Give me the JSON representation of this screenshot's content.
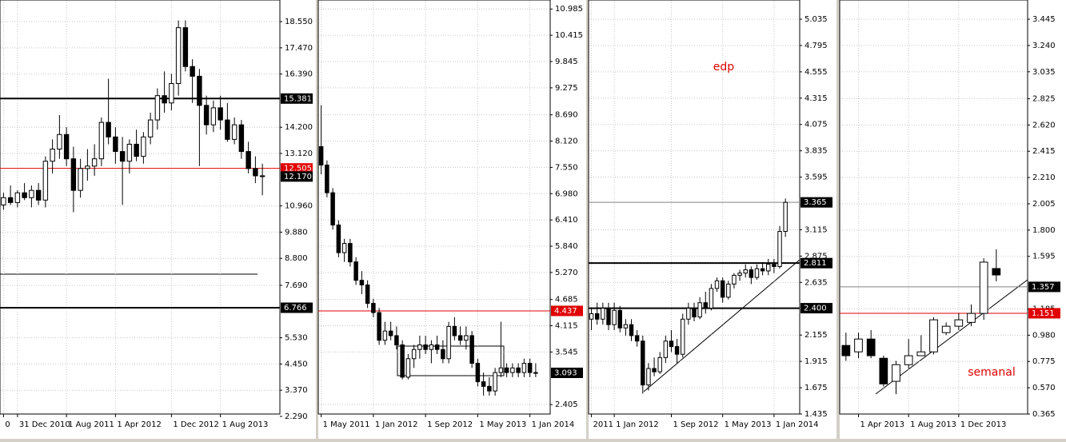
{
  "chart_data": [
    {
      "type": "candlestick",
      "ylim": [
        2.389,
        19.44
      ],
      "yticks": [
        {
          "value": 18.55,
          "label": "18.550"
        },
        {
          "value": 17.47,
          "label": "17.470"
        },
        {
          "value": 16.39,
          "label": "16.390"
        },
        {
          "value": 14.2,
          "label": "14.200"
        },
        {
          "value": 13.12,
          "label": "13.120"
        },
        {
          "value": 10.96,
          "label": "10.960"
        },
        {
          "value": 9.88,
          "label": "9.880"
        },
        {
          "value": 8.8,
          "label": "8.800"
        },
        {
          "value": 7.69,
          "label": "7.690"
        },
        {
          "value": 5.53,
          "label": "5.530"
        },
        {
          "value": 4.45,
          "label": "4.450"
        },
        {
          "value": 3.37,
          "label": "3.370"
        },
        {
          "value": 2.29,
          "label": "2.290"
        }
      ],
      "xticks": [
        {
          "value": 0,
          "label": "0"
        },
        {
          "value": 2,
          "label": "31 Dec 2010"
        },
        {
          "value": 9,
          "label": "1 Aug 2011"
        },
        {
          "value": 16,
          "label": "1 Apr 2012"
        },
        {
          "value": 24,
          "label": "1 Dec 2012"
        },
        {
          "value": 31,
          "label": "1 Aug 2013"
        }
      ],
      "series": [
        {
          "open": [
            11.0,
            11.3,
            11.1,
            11.5,
            11.3,
            11.6,
            11.2,
            12.8,
            13.3,
            13.9,
            12.9,
            11.6,
            12.5,
            12.6,
            12.9,
            14.4,
            13.8,
            13.2,
            12.8,
            13.5,
            13.0,
            13.8,
            14.5,
            15.5,
            15.2,
            16.0,
            18.3,
            16.7,
            16.3,
            15.1,
            14.3,
            15.0,
            14.5,
            13.7,
            14.3,
            13.2,
            12.5,
            12.2
          ],
          "high": [
            11.5,
            11.8,
            11.6,
            11.9,
            11.8,
            11.9,
            13.0,
            13.7,
            14.7,
            14.2,
            13.4,
            12.9,
            13.3,
            13.5,
            14.6,
            16.2,
            14.2,
            13.8,
            13.7,
            14.1,
            14.0,
            14.8,
            15.8,
            16.5,
            16.4,
            18.6,
            18.6,
            17.0,
            16.6,
            15.5,
            15.3,
            15.5,
            15.2,
            14.6,
            14.5,
            13.6,
            13.0,
            12.7
          ],
          "low": [
            10.8,
            11.0,
            10.9,
            11.2,
            10.9,
            11.0,
            10.9,
            12.3,
            12.9,
            12.6,
            10.7,
            11.3,
            12.0,
            12.2,
            12.6,
            13.5,
            12.7,
            11.0,
            12.3,
            12.8,
            12.7,
            13.5,
            14.1,
            14.8,
            14.9,
            15.5,
            16.5,
            15.2,
            12.6,
            13.9,
            14.0,
            14.1,
            13.6,
            13.5,
            12.9,
            12.3,
            11.9,
            11.4
          ],
          "close": [
            11.3,
            11.1,
            11.5,
            11.3,
            11.6,
            11.2,
            12.8,
            13.3,
            13.9,
            12.9,
            11.6,
            12.5,
            12.6,
            12.9,
            14.4,
            13.8,
            13.2,
            12.8,
            13.5,
            13.0,
            13.8,
            14.5,
            15.5,
            15.2,
            16.0,
            18.3,
            16.7,
            16.3,
            15.1,
            14.3,
            15.0,
            14.5,
            13.7,
            14.3,
            13.2,
            12.5,
            12.2,
            12.17
          ]
        }
      ],
      "hlines": [
        {
          "value": 15.381,
          "label": "15.381",
          "color": "#000000",
          "style": "thick"
        },
        {
          "value": 12.505,
          "label": "12.505",
          "color": "#e00000",
          "style": "thin"
        },
        {
          "value": 12.17,
          "label": "12.170",
          "color": "#000000",
          "style": "none"
        },
        {
          "value": 6.766,
          "label": "6.766",
          "color": "#000000",
          "style": "thick"
        }
      ],
      "annotations": []
    },
    {
      "type": "candlestick",
      "ylim": [
        2.2,
        11.18
      ],
      "yticks": [
        10.985,
        10.415,
        9.845,
        9.275,
        {
          "value": 8.69,
          "label": "8.690"
        },
        {
          "value": 8.12,
          "label": "8.120"
        },
        {
          "value": 7.55,
          "label": "7.550"
        },
        {
          "value": 6.98,
          "label": "6.980"
        },
        {
          "value": 6.41,
          "label": "6.410"
        },
        {
          "value": 5.84,
          "label": "5.840"
        },
        {
          "value": 5.27,
          "label": "5.270"
        },
        4.685,
        4.115,
        3.545,
        2.405
      ],
      "xticks": [
        {
          "value": 0,
          "label": "1 May 2011"
        },
        {
          "value": 9,
          "label": "1 Jan 2012"
        },
        {
          "value": 18,
          "label": "1 Sep 2012"
        },
        {
          "value": 27,
          "label": "1 May 2013"
        },
        {
          "value": 36,
          "label": "1 Jan 2014"
        }
      ],
      "series": [
        {
          "open": [
            8.0,
            7.6,
            7.0,
            6.3,
            5.7,
            5.9,
            5.5,
            5.1,
            5.0,
            4.6,
            4.4,
            3.8,
            4.0,
            3.9,
            3.7,
            3.0,
            3.4,
            3.6,
            3.7,
            3.6,
            3.7,
            3.6,
            3.4,
            4.1,
            3.9,
            3.8,
            3.9,
            3.3,
            2.9,
            2.8,
            2.7,
            3.1,
            3.2,
            3.1,
            3.2,
            3.1,
            3.3,
            3.1
          ],
          "high": [
            8.9,
            7.7,
            7.1,
            6.4,
            6.0,
            6.0,
            5.6,
            5.3,
            5.1,
            4.7,
            4.5,
            4.2,
            4.2,
            4.1,
            3.8,
            3.5,
            3.7,
            3.9,
            3.9,
            3.8,
            3.9,
            3.8,
            4.2,
            4.3,
            4.1,
            4.1,
            4.0,
            3.4,
            3.1,
            3.0,
            3.2,
            4.2,
            3.3,
            3.3,
            3.3,
            3.4,
            3.4,
            3.3
          ],
          "low": [
            7.4,
            6.9,
            6.2,
            5.6,
            5.5,
            5.4,
            5.0,
            4.8,
            4.5,
            4.3,
            3.7,
            3.7,
            3.8,
            3.6,
            2.95,
            2.95,
            3.2,
            3.4,
            3.5,
            3.3,
            3.5,
            3.3,
            3.3,
            3.8,
            3.7,
            3.6,
            3.2,
            2.8,
            2.6,
            2.6,
            2.6,
            3.0,
            3.0,
            3.0,
            3.0,
            3.0,
            3.0,
            3.0
          ],
          "close": [
            7.6,
            7.0,
            6.3,
            5.7,
            5.9,
            5.5,
            5.1,
            5.0,
            4.6,
            4.4,
            3.8,
            4.0,
            3.9,
            3.7,
            3.0,
            3.4,
            3.6,
            3.7,
            3.6,
            3.7,
            3.6,
            3.4,
            4.1,
            3.9,
            3.8,
            3.9,
            3.3,
            2.9,
            2.8,
            2.7,
            3.1,
            3.2,
            3.1,
            3.2,
            3.1,
            3.3,
            3.1,
            3.093
          ]
        }
      ],
      "hlines": [
        {
          "value": 4.437,
          "label": "4.437",
          "color": "#e00000",
          "style": "thin"
        },
        {
          "value": 3.093,
          "label": "3.093",
          "color": "#000000",
          "style": "none"
        }
      ],
      "annotations": []
    },
    {
      "type": "candlestick",
      "ylim": [
        1.435,
        5.21
      ],
      "yticks": [
        5.035,
        4.795,
        4.555,
        4.315,
        4.075,
        3.835,
        3.595,
        3.115,
        2.875,
        2.635,
        2.155,
        1.915,
        1.675,
        1.435
      ],
      "xticks": [
        {
          "value": 0,
          "label": "2011"
        },
        {
          "value": 4,
          "label": "1 Jan 2012"
        },
        {
          "value": 14,
          "label": "1 Sep 2012"
        },
        {
          "value": 23,
          "label": "1 May 2013"
        },
        {
          "value": 32,
          "label": "1 Jan 2014"
        }
      ],
      "series": [
        {
          "open": [
            2.3,
            2.35,
            2.3,
            2.4,
            2.25,
            2.38,
            2.22,
            2.25,
            2.15,
            2.1,
            1.7,
            1.85,
            1.82,
            1.95,
            2.1,
            2.05,
            1.98,
            2.3,
            2.4,
            2.32,
            2.45,
            2.4,
            2.58,
            2.65,
            2.5,
            2.62,
            2.7,
            2.72,
            2.75,
            2.68,
            2.76,
            2.74,
            2.8,
            2.78,
            3.1
          ],
          "high": [
            2.4,
            2.45,
            2.45,
            2.45,
            2.45,
            2.42,
            2.3,
            2.3,
            2.2,
            2.15,
            1.9,
            1.95,
            2.0,
            2.15,
            2.2,
            2.12,
            2.35,
            2.45,
            2.45,
            2.5,
            2.55,
            2.62,
            2.68,
            2.68,
            2.65,
            2.72,
            2.75,
            2.8,
            2.78,
            2.8,
            2.82,
            2.85,
            2.85,
            3.15,
            3.4
          ],
          "low": [
            2.2,
            2.25,
            2.25,
            2.2,
            2.2,
            2.18,
            2.15,
            2.1,
            2.05,
            1.62,
            1.65,
            1.78,
            1.8,
            1.9,
            2.0,
            1.9,
            1.95,
            2.25,
            2.28,
            2.3,
            2.35,
            2.38,
            2.55,
            2.45,
            2.48,
            2.58,
            2.65,
            2.68,
            2.62,
            2.66,
            2.7,
            2.7,
            2.72,
            2.76,
            3.05
          ],
          "close": [
            2.35,
            2.3,
            2.4,
            2.25,
            2.38,
            2.22,
            2.25,
            2.15,
            2.1,
            1.7,
            1.85,
            1.82,
            1.95,
            2.1,
            2.05,
            1.98,
            2.3,
            2.4,
            2.32,
            2.45,
            2.4,
            2.58,
            2.65,
            2.5,
            2.62,
            2.7,
            2.72,
            2.75,
            2.68,
            2.76,
            2.74,
            2.8,
            2.78,
            3.1,
            3.365
          ]
        }
      ],
      "hlines": [
        {
          "value": 3.365,
          "label": "3.365",
          "color": "#808080",
          "style": "thin"
        },
        {
          "value": 2.811,
          "label": "2.811",
          "color": "#000000",
          "style": "thick"
        },
        {
          "value": 2.4,
          "label": "2.400",
          "color": "#000000",
          "style": "thick"
        }
      ],
      "annotations": [
        {
          "text": "edp",
          "color": "#e00000"
        }
      ]
    },
    {
      "type": "candlestick",
      "ylim": [
        0.365,
        3.595
      ],
      "yticks": [
        3.445,
        {
          "value": 3.24,
          "label": "3.240"
        },
        3.035,
        2.825,
        {
          "value": 2.62,
          "label": "2.620"
        },
        2.415,
        {
          "value": 2.21,
          "label": "2.210"
        },
        2.005,
        {
          "value": 1.8,
          "label": "1.800"
        },
        1.595,
        1.185,
        {
          "value": 0.98,
          "label": "0.980"
        },
        0.775,
        {
          "value": 0.57,
          "label": "0.570"
        },
        0.365
      ],
      "xticks": [
        {
          "value": 1,
          "label": "1 Apr 2013"
        },
        {
          "value": 5,
          "label": "1 Aug 2013"
        },
        {
          "value": 9,
          "label": "1 Dec 2013"
        }
      ],
      "series": [
        {
          "open": [
            0.9,
            0.85,
            0.95,
            0.8,
            0.62,
            0.75,
            0.82,
            0.85,
            1.0,
            1.05,
            1.08,
            1.15,
            1.5
          ],
          "high": [
            1.0,
            1.0,
            1.02,
            0.82,
            0.78,
            0.95,
            0.98,
            1.12,
            1.08,
            1.15,
            1.22,
            1.58,
            1.65
          ],
          "low": [
            0.78,
            0.8,
            0.8,
            0.58,
            0.52,
            0.72,
            0.82,
            0.83,
            0.98,
            1.02,
            1.05,
            1.1,
            1.4
          ],
          "close": [
            0.82,
            0.95,
            0.82,
            0.6,
            0.75,
            0.82,
            0.85,
            1.1,
            1.05,
            1.1,
            1.15,
            1.55,
            1.45
          ]
        }
      ],
      "hlines": [
        {
          "value": 1.357,
          "label": "1.357",
          "color": "#808080",
          "style": "thin"
        },
        {
          "value": 1.151,
          "label": "1.151",
          "color": "#e00000",
          "style": "thin"
        }
      ],
      "annotations": [
        {
          "text": "semanal",
          "color": "#e00000"
        }
      ]
    }
  ]
}
